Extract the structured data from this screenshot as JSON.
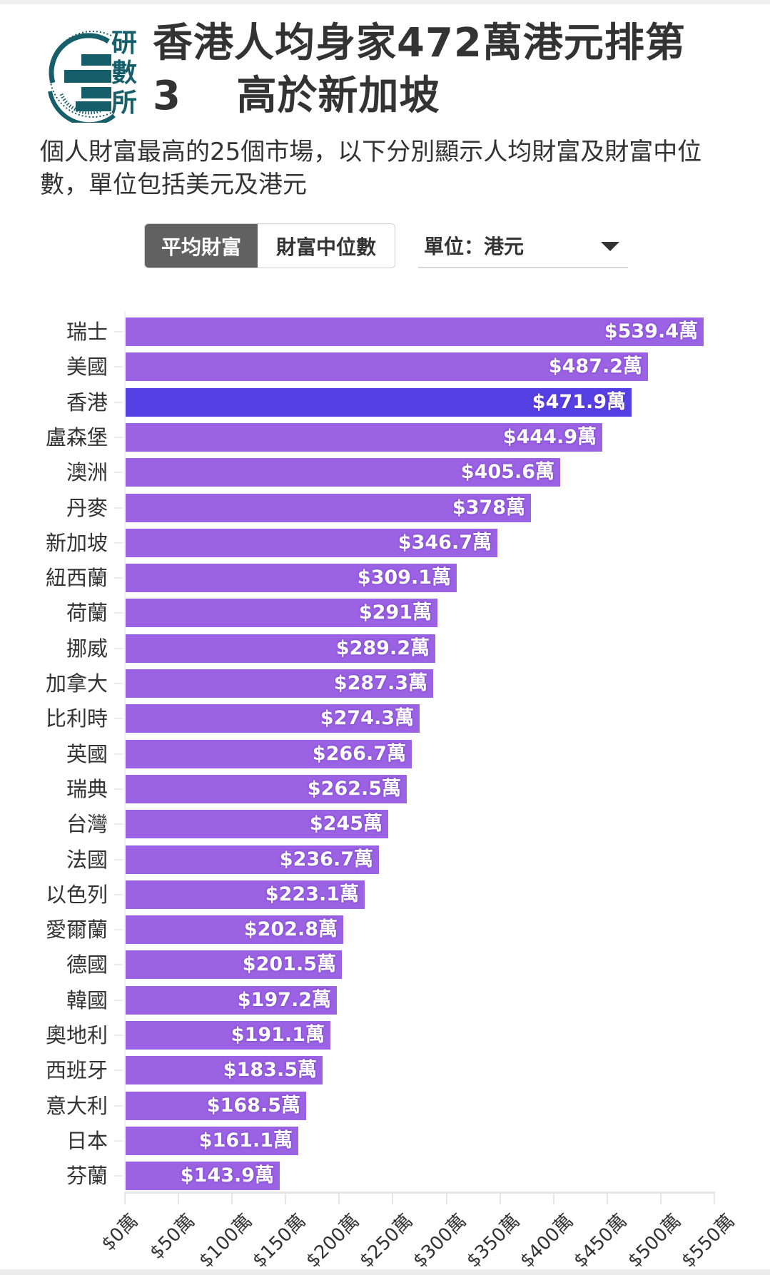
{
  "header": {
    "logo_chars": [
      "研",
      "數",
      "所"
    ],
    "title_line1": "香港人均身家472萬港元排第",
    "title_line2": "3　 高於新加坡",
    "subtitle": "個人財富最高的25個市場，以下分別顯示人均財富及財富中位數，單位包括美元及港元"
  },
  "controls": {
    "tabs": [
      {
        "label": "平均財富",
        "active": true
      },
      {
        "label": "財富中位數",
        "active": false
      }
    ],
    "unit_select": {
      "label": "單位：港元",
      "icon": "caret-down-icon"
    }
  },
  "colors": {
    "bar": "#9b62e4",
    "highlight_bar": "#5540e3",
    "logo": "#165f6a",
    "active_tab": "#616161"
  },
  "chart_data": {
    "type": "bar",
    "orientation": "horizontal",
    "title": "香港人均身家472萬港元排第3 高於新加坡",
    "subtitle": "個人財富最高的25個市場，以下分別顯示人均財富及財富中位數，單位包括美元及港元",
    "xlabel": "",
    "ylabel": "",
    "unit": "萬港元",
    "xlim": [
      0,
      550
    ],
    "x_ticks": [
      "$0萬",
      "$50萬",
      "$100萬",
      "$150萬",
      "$200萬",
      "$250萬",
      "$300萬",
      "$350萬",
      "$400萬",
      "$450萬",
      "$500萬",
      "$550萬"
    ],
    "highlight": "香港",
    "categories": [
      "瑞士",
      "美國",
      "香港",
      "盧森堡",
      "澳洲",
      "丹麥",
      "新加坡",
      "紐西蘭",
      "荷蘭",
      "挪威",
      "加拿大",
      "比利時",
      "英國",
      "瑞典",
      "台灣",
      "法國",
      "以色列",
      "愛爾蘭",
      "德國",
      "韓國",
      "奧地利",
      "西班牙",
      "意大利",
      "日本",
      "芬蘭"
    ],
    "values": [
      539.4,
      487.2,
      471.9,
      444.9,
      405.6,
      378,
      346.7,
      309.1,
      291,
      289.2,
      287.3,
      274.3,
      266.7,
      262.5,
      245,
      236.7,
      223.1,
      202.8,
      201.5,
      197.2,
      191.1,
      183.5,
      168.5,
      161.1,
      143.9
    ],
    "value_labels": [
      "$539.4萬",
      "$487.2萬",
      "$471.9萬",
      "$444.9萬",
      "$405.6萬",
      "$378萬",
      "$346.7萬",
      "$309.1萬",
      "$291萬",
      "$289.2萬",
      "$287.3萬",
      "$274.3萬",
      "$266.7萬",
      "$262.5萬",
      "$245萬",
      "$236.7萬",
      "$223.1萬",
      "$202.8萬",
      "$201.5萬",
      "$197.2萬",
      "$191.1萬",
      "$183.5萬",
      "$168.5萬",
      "$161.1萬",
      "$143.9萬"
    ],
    "grid": false,
    "legend": null
  }
}
